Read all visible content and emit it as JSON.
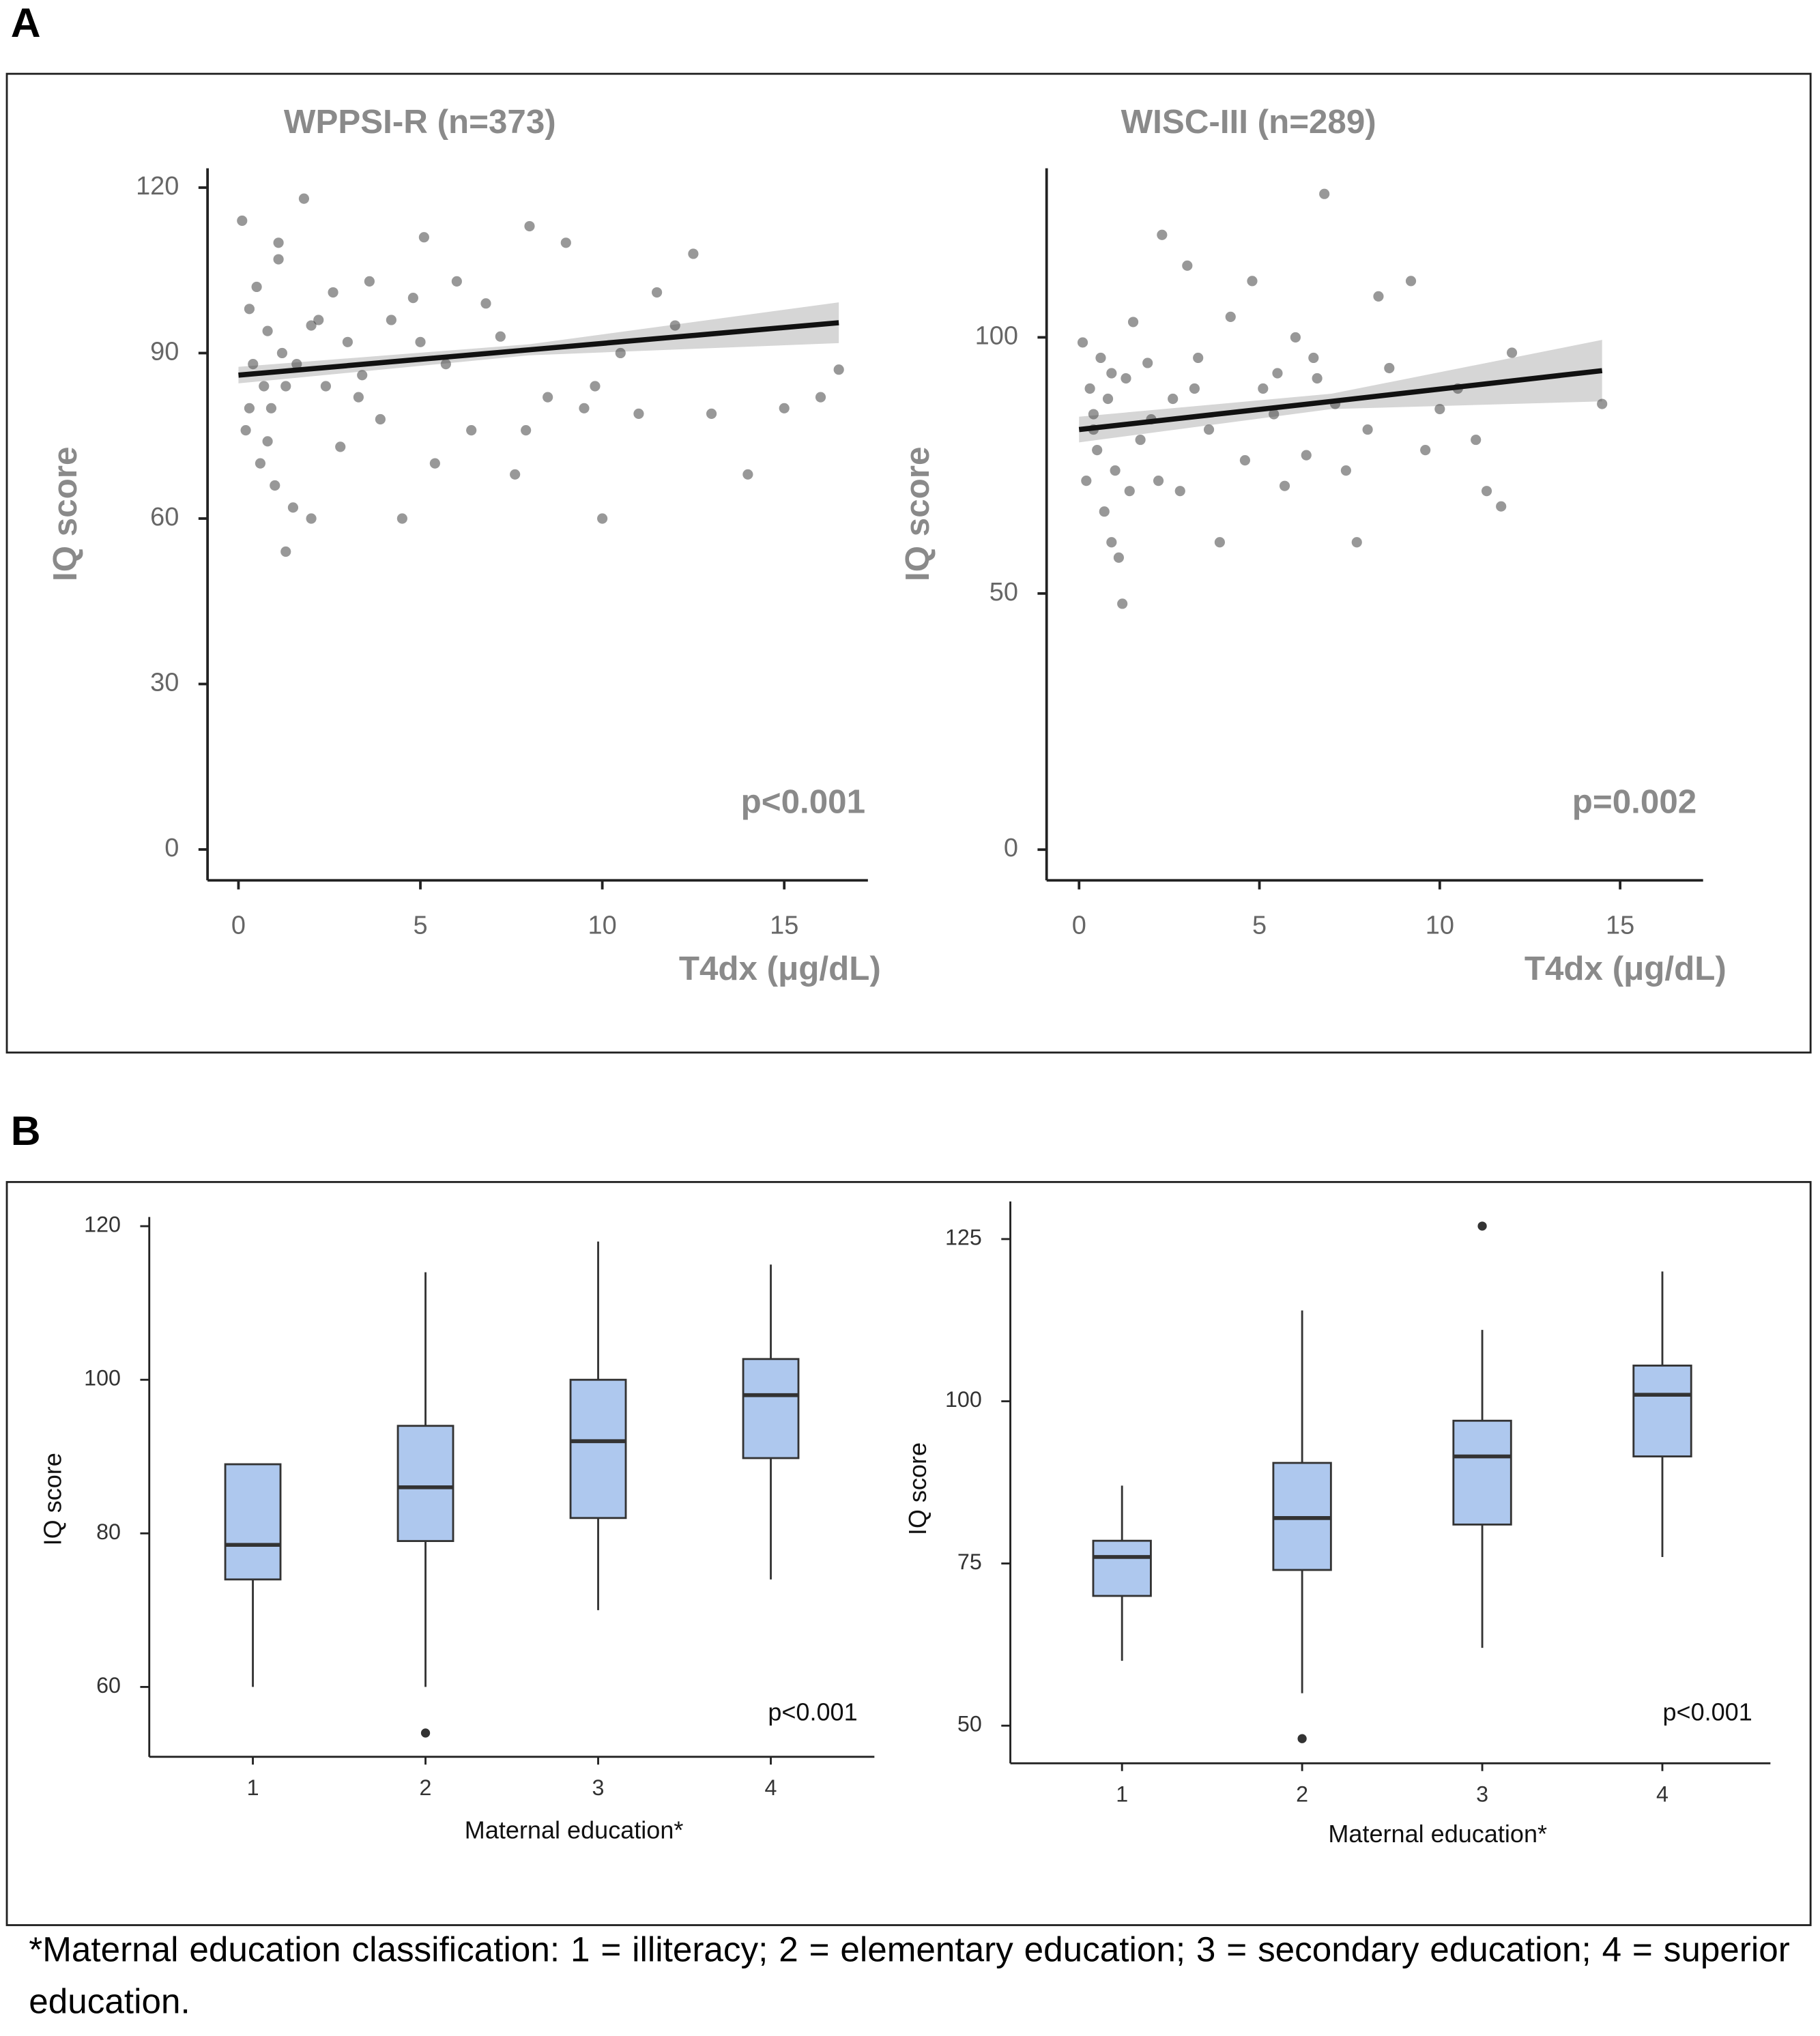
{
  "panel_labels": [
    "A",
    "B"
  ],
  "footnote": "*Maternal education classification: 1 = illiteracy; 2 = elementary education; 3 = secondary education; 4 = superior education.",
  "chart_data": [
    {
      "type": "scatter",
      "title": "WPPSI-R (n=373)",
      "xlabel": "T4dx (μg/dL)",
      "ylabel": "IQ score",
      "annotation": "p<0.001",
      "xlim": [
        -0.85,
        17.3
      ],
      "ylim": [
        -5.6,
        123.5
      ],
      "xticks": [
        0,
        5,
        10,
        15
      ],
      "yticks": [
        0,
        30,
        60,
        90,
        120
      ],
      "color": "#444444",
      "x": [
        0.1,
        0.2,
        0.3,
        0.4,
        0.5,
        0.6,
        0.7,
        0.8,
        0.9,
        1.0,
        1.1,
        1.2,
        1.3,
        1.5,
        1.6,
        1.8,
        2.0,
        2.2,
        2.4,
        2.6,
        2.8,
        3.0,
        3.3,
        3.6,
        3.9,
        4.2,
        4.5,
        4.8,
        5.1,
        5.4,
        5.7,
        6.0,
        6.4,
        6.8,
        7.2,
        7.6,
        8.0,
        8.5,
        9.0,
        9.5,
        10.0,
        10.5,
        11.0,
        11.5,
        12.0,
        12.5,
        13.0,
        14.0,
        15.0,
        16.0,
        16.5,
        0.3,
        0.8,
        1.1,
        2.0,
        3.4,
        5.0,
        7.9,
        9.8,
        1.3
      ],
      "y": [
        114,
        76,
        98,
        88,
        102,
        70,
        84,
        94,
        80,
        66,
        107,
        90,
        54,
        62,
        88,
        118,
        60,
        96,
        84,
        101,
        73,
        92,
        82,
        103,
        78,
        96,
        60,
        100,
        111,
        70,
        88,
        103,
        76,
        99,
        93,
        68,
        113,
        82,
        110,
        80,
        60,
        90,
        79,
        101,
        95,
        108,
        79,
        68,
        80,
        82,
        87,
        80,
        74,
        110,
        95,
        86,
        92,
        76,
        84,
        84
      ],
      "fit": {
        "x": [
          0,
          8,
          16.5
        ],
        "y": [
          86,
          90.6,
          95.5
        ],
        "lower": [
          84.5,
          89.6,
          91.8
        ],
        "upper": [
          87.5,
          91.6,
          99.2
        ]
      }
    },
    {
      "type": "scatter",
      "title": "WISC-III (n=289)",
      "xlabel": "T4dx (μg/dL)",
      "ylabel": "IQ score",
      "annotation": "p=0.002",
      "xlim": [
        -0.9,
        17.3
      ],
      "ylim": [
        -6,
        133
      ],
      "xticks": [
        0,
        5,
        10,
        15
      ],
      "yticks": [
        0,
        50,
        100
      ],
      "color": "#444444",
      "x": [
        0.1,
        0.2,
        0.3,
        0.4,
        0.5,
        0.6,
        0.7,
        0.8,
        0.9,
        1.0,
        1.1,
        1.2,
        1.3,
        1.5,
        1.7,
        1.9,
        2.2,
        2.3,
        2.6,
        2.8,
        3.0,
        3.3,
        3.6,
        3.9,
        4.2,
        4.6,
        4.8,
        5.1,
        5.4,
        5.7,
        6.0,
        6.3,
        6.6,
        6.8,
        7.1,
        7.4,
        7.7,
        8.0,
        8.3,
        8.6,
        9.2,
        9.6,
        10.0,
        10.5,
        11.0,
        11.3,
        11.7,
        12.0,
        14.5,
        0.4,
        0.9,
        1.4,
        2.0,
        3.2,
        5.5,
        6.5
      ],
      "y": [
        99,
        72,
        90,
        85,
        78,
        96,
        66,
        88,
        60,
        74,
        57,
        48,
        92,
        103,
        80,
        95,
        72,
        120,
        88,
        70,
        114,
        96,
        82,
        60,
        104,
        76,
        111,
        90,
        85,
        71,
        100,
        77,
        92,
        128,
        87,
        74,
        60,
        82,
        108,
        94,
        111,
        78,
        86,
        90,
        80,
        70,
        67,
        97,
        87,
        82,
        93,
        70,
        84,
        90,
        93,
        96
      ],
      "fit": {
        "x": [
          0,
          7,
          14.5
        ],
        "y": [
          82,
          87.5,
          93.5
        ],
        "lower": [
          79.5,
          86,
          87.5
        ],
        "upper": [
          84.5,
          89,
          99.5
        ]
      }
    },
    {
      "type": "box",
      "xlabel": "Maternal education*",
      "ylabel": "IQ score",
      "annotation": "p<0.001",
      "categories": [
        "1",
        "2",
        "3",
        "4"
      ],
      "xlim": [
        0.4,
        4.6
      ],
      "ylim": [
        50.9,
        121.2
      ],
      "yticks": [
        60,
        80,
        100,
        120
      ],
      "color": "#aec8ee",
      "min": [
        60,
        60,
        70,
        74
      ],
      "q1": [
        74,
        79,
        82,
        89.8
      ],
      "median": [
        78.5,
        86,
        92,
        98
      ],
      "q3": [
        89,
        94,
        100,
        102.7
      ],
      "max": [
        89,
        114,
        118,
        115
      ],
      "outliers": [
        [],
        [
          54
        ],
        [],
        []
      ]
    },
    {
      "type": "box",
      "xlabel": "Maternal education*",
      "ylabel": "IQ score",
      "annotation": "p<0.001",
      "categories": [
        "1",
        "2",
        "3",
        "4"
      ],
      "xlim": [
        0.38,
        4.6
      ],
      "ylim": [
        44.2,
        130.8
      ],
      "yticks": [
        50,
        75,
        100,
        125
      ],
      "color": "#aec8ee",
      "min": [
        60,
        55,
        62,
        76
      ],
      "q1": [
        70,
        74,
        81,
        91.5
      ],
      "median": [
        76,
        82,
        91.5,
        101
      ],
      "q3": [
        78.5,
        90.5,
        97,
        105.5
      ],
      "max": [
        87,
        114,
        111,
        120
      ],
      "outliers": [
        [],
        [
          48
        ],
        [
          127
        ],
        []
      ]
    }
  ]
}
